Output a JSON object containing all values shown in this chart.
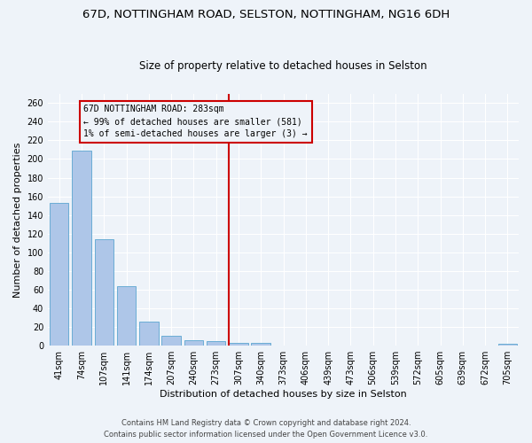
{
  "title": "67D, NOTTINGHAM ROAD, SELSTON, NOTTINGHAM, NG16 6DH",
  "subtitle": "Size of property relative to detached houses in Selston",
  "xlabel": "Distribution of detached houses by size in Selston",
  "ylabel": "Number of detached properties",
  "categories": [
    "41sqm",
    "74sqm",
    "107sqm",
    "141sqm",
    "174sqm",
    "207sqm",
    "240sqm",
    "273sqm",
    "307sqm",
    "340sqm",
    "373sqm",
    "406sqm",
    "439sqm",
    "473sqm",
    "506sqm",
    "539sqm",
    "572sqm",
    "605sqm",
    "639sqm",
    "672sqm",
    "705sqm"
  ],
  "values": [
    153,
    209,
    114,
    64,
    26,
    11,
    6,
    5,
    3,
    3,
    0,
    0,
    0,
    0,
    0,
    0,
    0,
    0,
    0,
    0,
    2
  ],
  "bar_color": "#aec6e8",
  "bar_edge_color": "#6aadd5",
  "vline_color": "#cc0000",
  "vline_position": 8,
  "ylim": [
    0,
    270
  ],
  "yticks": [
    0,
    20,
    40,
    60,
    80,
    100,
    120,
    140,
    160,
    180,
    200,
    220,
    240,
    260
  ],
  "annotation_title": "67D NOTTINGHAM ROAD: 283sqm",
  "annotation_line1": "← 99% of detached houses are smaller (581)",
  "annotation_line2": "1% of semi-detached houses are larger (3) →",
  "annotation_box_color": "#cc0000",
  "footer_line1": "Contains HM Land Registry data © Crown copyright and database right 2024.",
  "footer_line2": "Contains public sector information licensed under the Open Government Licence v3.0.",
  "bg_color": "#eef3f9",
  "grid_color": "#ffffff",
  "title_fontsize": 9.5,
  "subtitle_fontsize": 8.5,
  "axis_label_fontsize": 8,
  "tick_fontsize": 7,
  "annotation_fontsize": 7,
  "footer_fontsize": 6
}
